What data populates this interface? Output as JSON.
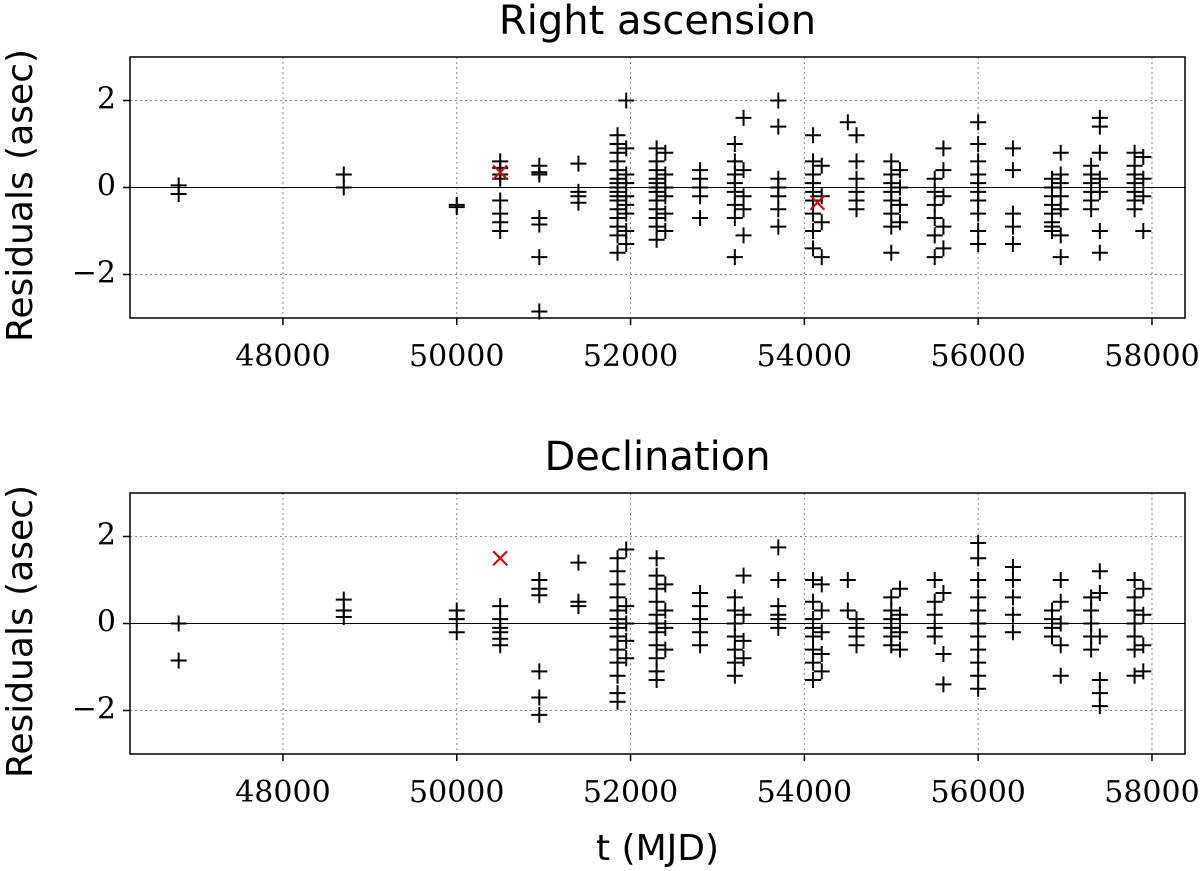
{
  "chart_data": [
    {
      "type": "scatter",
      "title": "Right ascension",
      "ylabel": "Residuals (asec)",
      "xlim": [
        46240,
        58380
      ],
      "ylim": [
        -3,
        3
      ],
      "xticks": [
        48000,
        50000,
        52000,
        54000,
        56000,
        58000
      ],
      "yticks": [
        {
          "value": -2,
          "label": "−2"
        },
        0,
        2
      ],
      "grid": true,
      "hline": 0,
      "series": [
        {
          "marker": "+",
          "color": "#000000",
          "x": [
            46800,
            46800,
            48700,
            48700,
            50000,
            50000,
            50500,
            50500,
            50500,
            50500,
            50500,
            50500,
            50500,
            50500,
            50950,
            50950,
            50950,
            50950,
            50950,
            50950,
            50950,
            51400,
            51400,
            51400,
            51400,
            51850,
            51850,
            51850,
            51850,
            51850,
            51850,
            51850,
            51850,
            51850,
            51850,
            51850,
            51850,
            51850,
            51850,
            51850,
            51850,
            51950,
            51950,
            51950,
            51950,
            51950,
            51950,
            51950,
            51950,
            51950,
            52300,
            52300,
            52300,
            52300,
            52300,
            52300,
            52300,
            52300,
            52300,
            52300,
            52300,
            52300,
            52400,
            52400,
            52400,
            52400,
            52400,
            52400,
            52800,
            52800,
            52800,
            52800,
            52800,
            53200,
            53200,
            53200,
            53200,
            53200,
            53200,
            53200,
            53200,
            53300,
            53300,
            53300,
            53300,
            53300,
            53700,
            53700,
            53700,
            53700,
            53700,
            53700,
            53700,
            54100,
            54100,
            54100,
            54100,
            54100,
            54100,
            54100,
            54100,
            54100,
            54200,
            54200,
            54200,
            54200,
            54500,
            54600,
            54600,
            54600,
            54600,
            54600,
            54600,
            55000,
            55000,
            55000,
            55000,
            55000,
            55000,
            55000,
            55000,
            55100,
            55100,
            55100,
            55100,
            55500,
            55500,
            55500,
            55500,
            55500,
            55500,
            55600,
            55600,
            55600,
            55600,
            55600,
            56000,
            56000,
            56000,
            56000,
            56000,
            56000,
            56000,
            56000,
            56000,
            56000,
            56400,
            56400,
            56400,
            56400,
            56400,
            56850,
            56850,
            56850,
            56850,
            56850,
            56850,
            56850,
            56850,
            56950,
            56950,
            56950,
            56950,
            56950,
            56950,
            56950,
            57300,
            57300,
            57300,
            57300,
            57300,
            57300,
            57400,
            57400,
            57400,
            57400,
            57400,
            57400,
            57400,
            57800,
            57800,
            57800,
            57800,
            57800,
            57800,
            57800,
            57900,
            57900,
            57900,
            57900
          ],
          "values": [
            0.05,
            -0.15,
            0.3,
            0.0,
            -0.4,
            -0.45,
            0.6,
            0.45,
            0.2,
            -0.3,
            -0.6,
            -0.8,
            -1.0,
            0.3,
            0.5,
            0.35,
            0.3,
            -0.7,
            -0.85,
            -1.6,
            -2.85,
            0.55,
            -0.1,
            -0.2,
            -0.35,
            1.2,
            1.0,
            0.8,
            0.6,
            0.4,
            0.2,
            0.1,
            0,
            -0.1,
            -0.2,
            -0.3,
            -0.5,
            -0.7,
            -0.9,
            -1.1,
            -1.5,
            2.0,
            0.9,
            0.3,
            0.1,
            -0.2,
            -0.4,
            -0.6,
            -1.0,
            -1.3,
            0.9,
            0.6,
            0.4,
            0.2,
            0.1,
            0,
            -0.1,
            -0.3,
            -0.5,
            -0.7,
            -0.9,
            -1.2,
            0.8,
            0.3,
            0,
            -0.2,
            -0.6,
            -1.0,
            0.4,
            0.2,
            0,
            -0.2,
            -0.7,
            1.0,
            0.6,
            0.3,
            0.1,
            -0.1,
            -0.4,
            -0.7,
            -1.6,
            1.6,
            0.4,
            -0.2,
            -0.5,
            -1.1,
            2.0,
            1.4,
            0.2,
            0,
            -0.2,
            -0.5,
            -0.9,
            1.2,
            0.6,
            0.3,
            0.1,
            -0.1,
            -0.3,
            -0.6,
            -1.0,
            -1.4,
            0.5,
            -0.2,
            -0.8,
            -1.6,
            1.5,
            1.2,
            0.6,
            0.2,
            -0.1,
            -0.3,
            -0.5,
            0.6,
            0.3,
            0.1,
            -0.1,
            -0.3,
            -0.6,
            -0.9,
            -1.5,
            0.4,
            0,
            -0.4,
            -0.8,
            0.2,
            -0.1,
            -0.4,
            -0.7,
            -1.1,
            -1.6,
            0.9,
            0.4,
            -0.2,
            -0.9,
            -1.4,
            1.5,
            1.0,
            0.6,
            0.3,
            0.1,
            -0.1,
            -0.3,
            -0.6,
            -1.0,
            -1.3,
            0.9,
            0.4,
            -0.6,
            -0.9,
            -1.3,
            0.2,
            0,
            -0.2,
            -0.4,
            -0.6,
            -0.8,
            -0.9,
            -1.0,
            0.8,
            0.3,
            0.1,
            -0.2,
            -0.5,
            -1.1,
            -1.6,
            0.5,
            0.3,
            0.1,
            -0.1,
            -0.3,
            -0.5,
            1.6,
            1.4,
            0.8,
            0.2,
            -0.1,
            -1.0,
            -1.5,
            0.8,
            0.5,
            0.3,
            0.1,
            -0.1,
            -0.3,
            -0.5,
            0.7,
            0.2,
            -0.2,
            -1.0
          ]
        },
        {
          "marker": "x",
          "color": "#e00000",
          "x": [
            50500,
            54150
          ],
          "values": [
            0.35,
            -0.35
          ]
        }
      ]
    },
    {
      "type": "scatter",
      "title": "Declination",
      "ylabel": "Residuals (asec)",
      "xlabel": "t (MJD)",
      "xlim": [
        46240,
        58380
      ],
      "ylim": [
        -3,
        3
      ],
      "xticks": [
        48000,
        50000,
        52000,
        54000,
        56000,
        58000
      ],
      "yticks": [
        {
          "value": -2,
          "label": "−2"
        },
        0,
        2
      ],
      "grid": true,
      "hline": 0,
      "series": [
        {
          "marker": "+",
          "color": "#000000",
          "x": [
            46800,
            46800,
            48700,
            48700,
            48700,
            50000,
            50000,
            50000,
            50500,
            50500,
            50500,
            50500,
            50500,
            50500,
            50950,
            50950,
            50950,
            50950,
            50950,
            50950,
            51400,
            51400,
            51400,
            51850,
            51850,
            51850,
            51850,
            51850,
            51850,
            51850,
            51850,
            51850,
            51850,
            51850,
            51850,
            51850,
            51950,
            51950,
            51950,
            51950,
            51950,
            52300,
            52300,
            52300,
            52300,
            52300,
            52300,
            52300,
            52300,
            52300,
            52300,
            52300,
            52400,
            52400,
            52400,
            52400,
            52800,
            52800,
            52800,
            52800,
            52800,
            53200,
            53200,
            53200,
            53200,
            53200,
            53200,
            53200,
            53300,
            53300,
            53300,
            53300,
            53700,
            53700,
            53700,
            53700,
            53700,
            53700,
            54100,
            54100,
            54100,
            54100,
            54100,
            54100,
            54100,
            54100,
            54200,
            54200,
            54200,
            54200,
            54200,
            54500,
            54500,
            54600,
            54600,
            54600,
            54600,
            55000,
            55000,
            55000,
            55000,
            55000,
            55000,
            55100,
            55100,
            55100,
            55100,
            55500,
            55500,
            55500,
            55500,
            55500,
            55600,
            55600,
            55600,
            56000,
            56000,
            56000,
            56000,
            56000,
            56000,
            56000,
            56000,
            56000,
            56000,
            56000,
            56400,
            56400,
            56400,
            56400,
            56400,
            56850,
            56850,
            56850,
            56850,
            56950,
            56950,
            56950,
            56950,
            56950,
            57300,
            57300,
            57300,
            57300,
            57300,
            57400,
            57400,
            57400,
            57400,
            57400,
            57400,
            57800,
            57800,
            57800,
            57800,
            57800,
            57800,
            57800,
            57900,
            57900,
            57900,
            57900
          ],
          "values": [
            0.0,
            -0.85,
            0.55,
            0.3,
            0.15,
            0.3,
            0.1,
            -0.2,
            0.4,
            0.1,
            -0.1,
            -0.2,
            -0.35,
            -0.5,
            1.0,
            0.8,
            0.65,
            -1.1,
            -1.7,
            -2.1,
            1.4,
            0.5,
            0.4,
            1.5,
            1.2,
            0.9,
            0.6,
            0.3,
            0.1,
            -0.1,
            -0.3,
            -0.6,
            -0.9,
            -1.2,
            -1.6,
            -1.8,
            1.7,
            0.4,
            0,
            -0.4,
            -0.8,
            1.5,
            1.1,
            0.8,
            0.5,
            0.2,
            0,
            -0.2,
            -0.5,
            -0.8,
            -1.1,
            -1.3,
            0.9,
            0.3,
            -0.1,
            -0.6,
            0.7,
            0.4,
            0.1,
            -0.2,
            -0.5,
            0.6,
            0.3,
            0,
            -0.3,
            -0.6,
            -0.9,
            -1.2,
            1.1,
            0.2,
            -0.4,
            -0.8,
            1.75,
            1.0,
            0.4,
            0.2,
            0.1,
            -0.1,
            1.0,
            0.5,
            0.1,
            -0.1,
            -0.3,
            -0.6,
            -0.9,
            -1.3,
            0.9,
            0.3,
            -0.2,
            -0.7,
            -1.1,
            1.0,
            0.3,
            0.1,
            -0.1,
            -0.3,
            -0.5,
            0.6,
            0.3,
            0.1,
            -0.1,
            -0.3,
            -0.5,
            0.8,
            0.2,
            -0.2,
            -0.6,
            1.0,
            0.5,
            0.2,
            -0.1,
            -0.3,
            0.7,
            -0.7,
            -1.4,
            1.85,
            1.5,
            1.0,
            0.6,
            0.3,
            0,
            -0.3,
            -0.6,
            -0.9,
            -1.2,
            -1.5,
            1.3,
            1.0,
            0.6,
            0.2,
            -0.2,
            0.3,
            0.1,
            -0.1,
            -0.3,
            1.0,
            0.5,
            0,
            -0.5,
            -1.2,
            0.6,
            0.3,
            0,
            -0.3,
            -0.6,
            1.2,
            0.7,
            -0.3,
            -1.3,
            -1.6,
            -1.9,
            1.0,
            0.6,
            0.3,
            0,
            -0.3,
            -0.6,
            -1.2,
            0.8,
            0.2,
            -0.5,
            -1.1
          ]
        },
        {
          "marker": "x",
          "color": "#e00000",
          "x": [
            50500
          ],
          "values": [
            1.5
          ]
        }
      ]
    }
  ]
}
